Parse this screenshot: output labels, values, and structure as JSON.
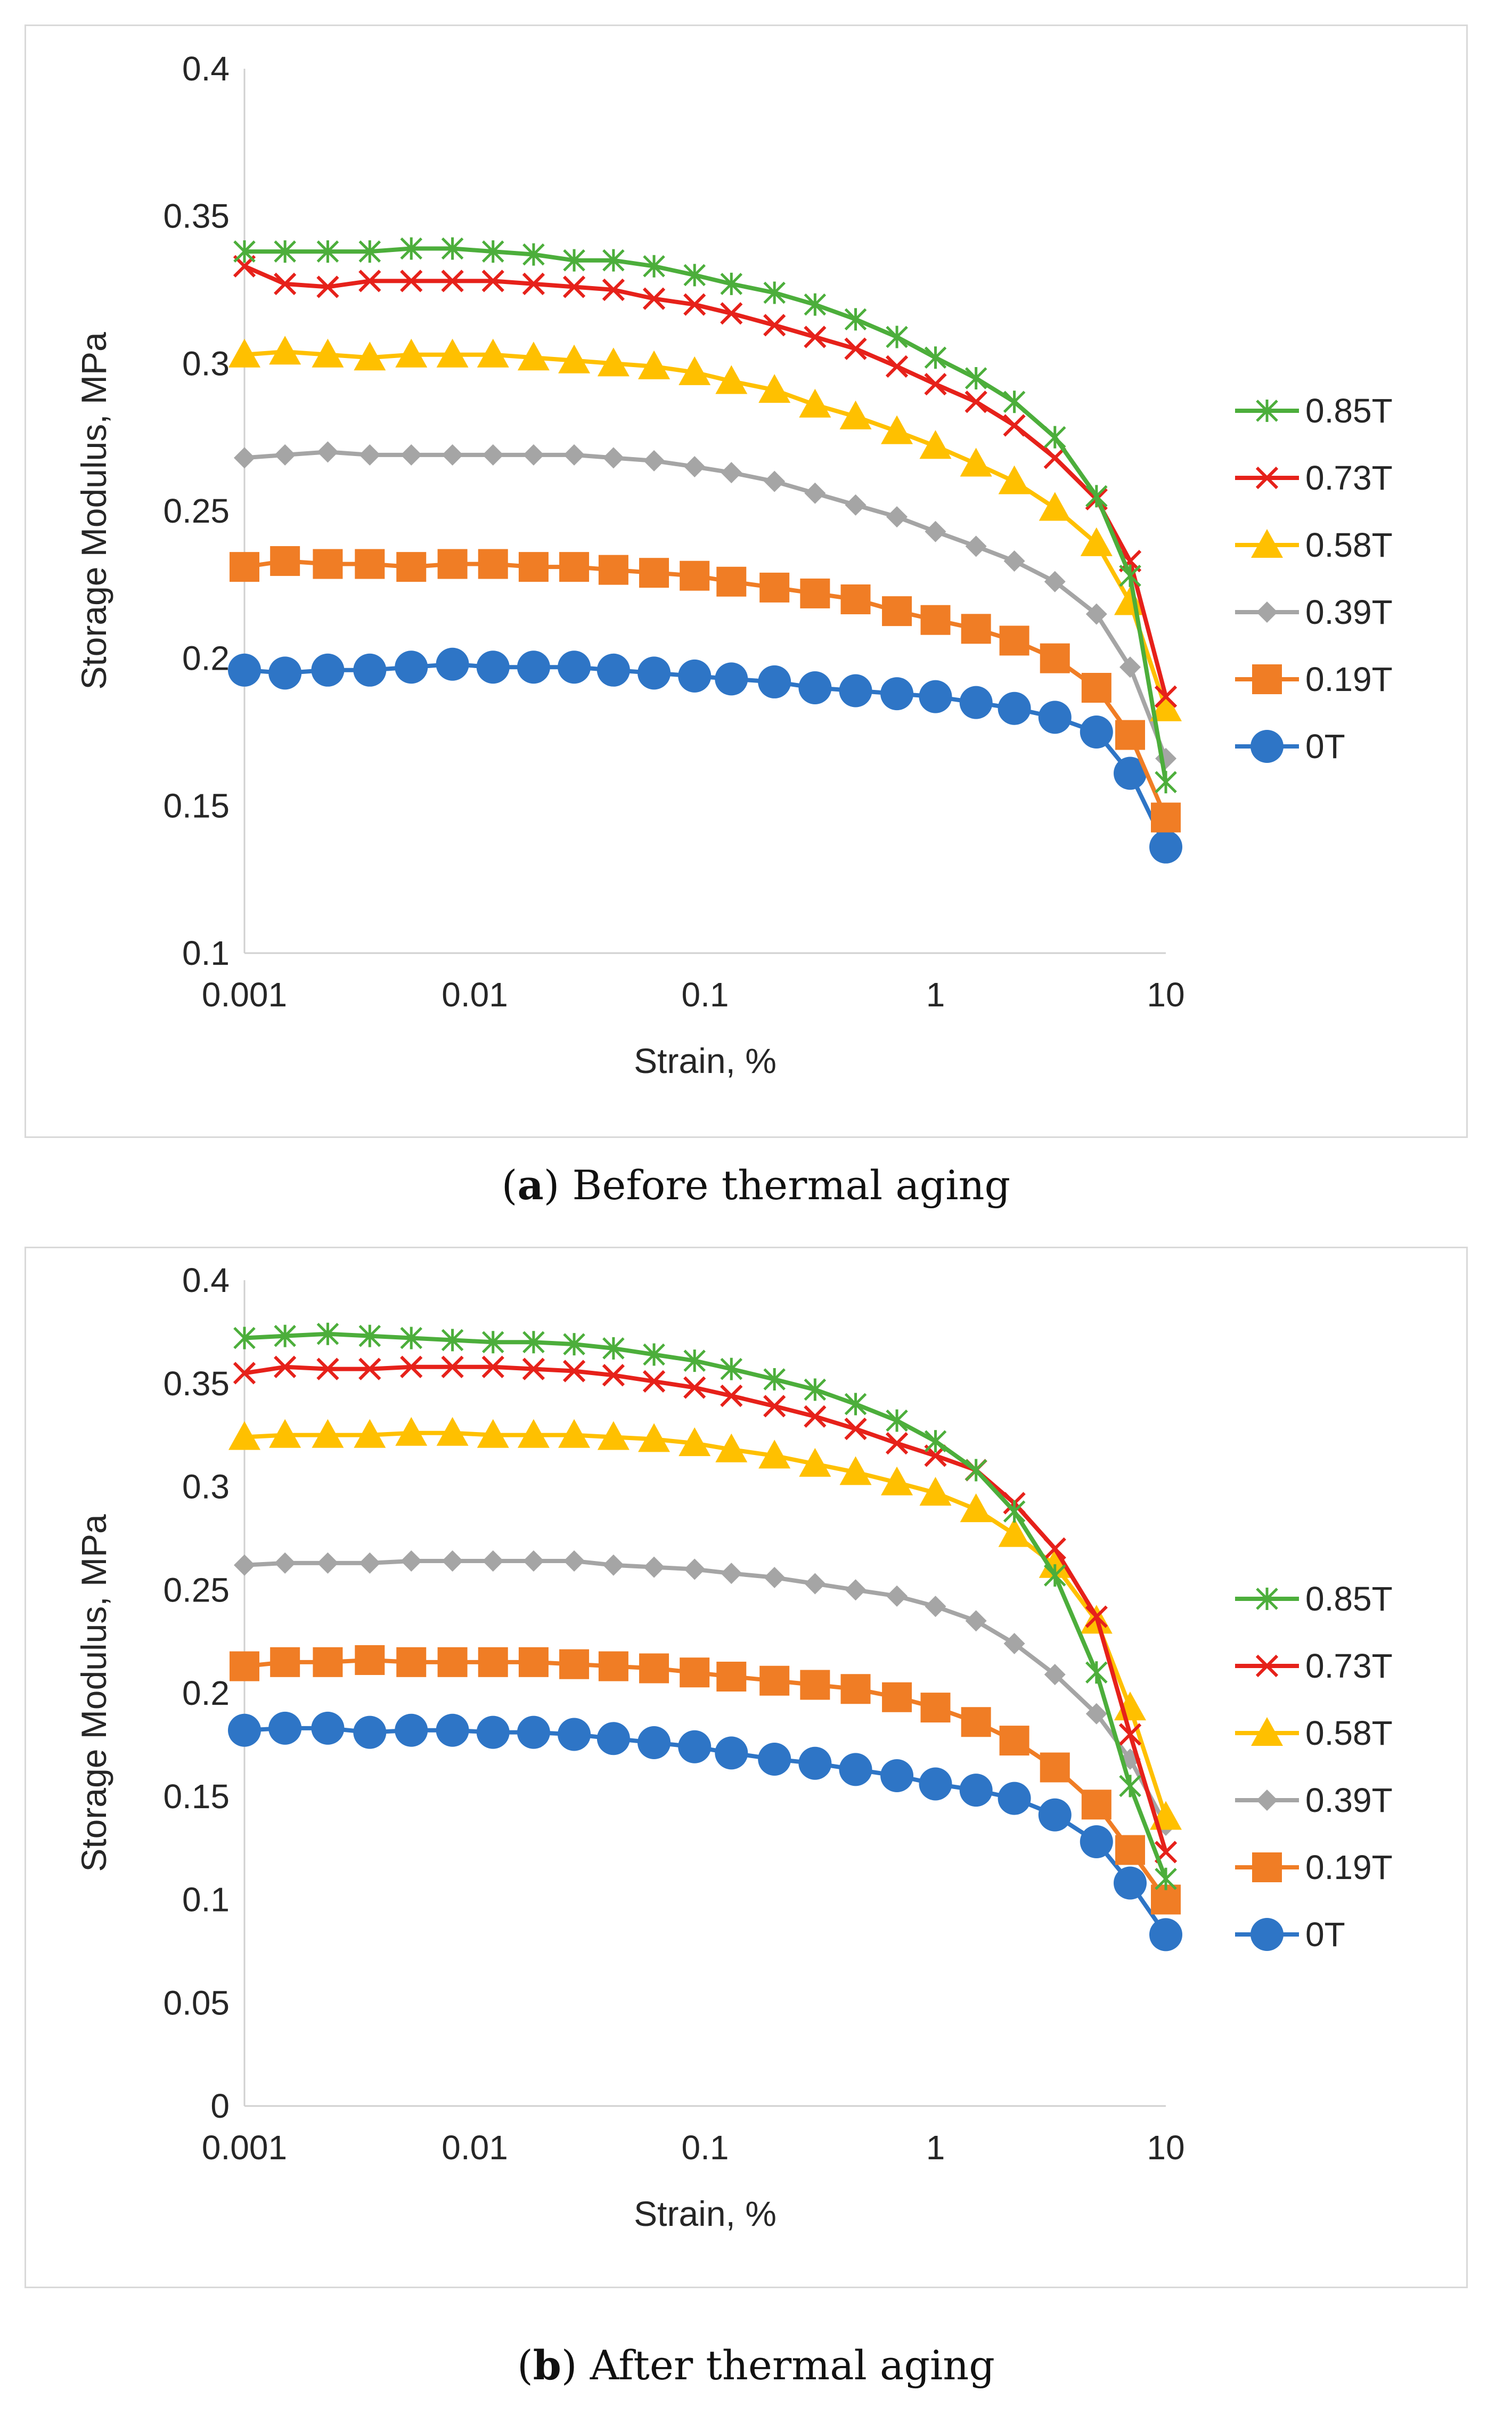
{
  "chart_data": [
    {
      "type": "line",
      "id": "a",
      "xscale": "log",
      "xlabel": "Strain, %",
      "ylabel": "Storage Modulus, MPa",
      "ylim": [
        0.1,
        0.4
      ],
      "yticks": [
        0.1,
        0.15,
        0.2,
        0.25,
        0.3,
        0.35,
        0.4
      ],
      "ytick_labels": [
        "0.1",
        "0.15",
        "0.2",
        "0.25",
        "0.3",
        "0.35",
        "0.4"
      ],
      "xlim": [
        0.001,
        10
      ],
      "xticks": [
        0.001,
        0.01,
        0.1,
        1,
        10
      ],
      "xtick_labels": [
        "0.001",
        "0.01",
        "0.1",
        "1",
        "10"
      ],
      "legend_position": "right",
      "x": [
        0.001,
        0.0015,
        0.0023,
        0.0035,
        0.0053,
        0.008,
        0.012,
        0.018,
        0.027,
        0.04,
        0.06,
        0.09,
        0.13,
        0.2,
        0.3,
        0.45,
        0.68,
        1.0,
        1.5,
        2.2,
        3.3,
        5.0,
        7.0,
        10.0
      ],
      "series": [
        {
          "name": "0.85T",
          "color": "#4cae3b",
          "marker": "asterisk",
          "values": [
            0.338,
            0.338,
            0.338,
            0.338,
            0.339,
            0.339,
            0.338,
            0.337,
            0.335,
            0.335,
            0.333,
            0.33,
            0.327,
            0.324,
            0.32,
            0.315,
            0.309,
            0.302,
            0.295,
            0.287,
            0.275,
            0.255,
            0.228,
            0.158
          ]
        },
        {
          "name": "0.73T",
          "color": "#e6211a",
          "marker": "x",
          "values": [
            0.333,
            0.327,
            0.326,
            0.328,
            0.328,
            0.328,
            0.328,
            0.327,
            0.326,
            0.325,
            0.322,
            0.32,
            0.317,
            0.313,
            0.309,
            0.305,
            0.299,
            0.293,
            0.287,
            0.279,
            0.268,
            0.254,
            0.233,
            0.187
          ]
        },
        {
          "name": "0.58T",
          "color": "#ffc000",
          "marker": "triangle",
          "values": [
            0.303,
            0.304,
            0.303,
            0.302,
            0.303,
            0.303,
            0.303,
            0.302,
            0.301,
            0.3,
            0.299,
            0.297,
            0.294,
            0.291,
            0.286,
            0.282,
            0.277,
            0.272,
            0.266,
            0.26,
            0.251,
            0.239,
            0.219,
            0.183
          ]
        },
        {
          "name": "0.39T",
          "color": "#a5a5a5",
          "marker": "diamond",
          "values": [
            0.268,
            0.269,
            0.27,
            0.269,
            0.269,
            0.269,
            0.269,
            0.269,
            0.269,
            0.268,
            0.267,
            0.265,
            0.263,
            0.26,
            0.256,
            0.252,
            0.248,
            0.243,
            0.238,
            0.233,
            0.226,
            0.215,
            0.197,
            0.166
          ]
        },
        {
          "name": "0.19T",
          "color": "#f07d25",
          "marker": "square",
          "values": [
            0.231,
            0.233,
            0.232,
            0.232,
            0.231,
            0.232,
            0.232,
            0.231,
            0.231,
            0.23,
            0.229,
            0.228,
            0.226,
            0.224,
            0.222,
            0.22,
            0.216,
            0.213,
            0.21,
            0.206,
            0.2,
            0.19,
            0.174,
            0.146
          ]
        },
        {
          "name": "0T",
          "color": "#2e75c6",
          "marker": "circle",
          "values": [
            0.196,
            0.195,
            0.196,
            0.196,
            0.197,
            0.198,
            0.197,
            0.197,
            0.197,
            0.196,
            0.195,
            0.194,
            0.193,
            0.192,
            0.19,
            0.189,
            0.188,
            0.187,
            0.185,
            0.183,
            0.18,
            0.175,
            0.161,
            0.136
          ]
        }
      ]
    },
    {
      "type": "line",
      "id": "b",
      "xscale": "log",
      "xlabel": "Strain, %",
      "ylabel": "Storage Modulus, MPa",
      "ylim": [
        0,
        0.4
      ],
      "yticks": [
        0,
        0.05,
        0.1,
        0.15,
        0.2,
        0.25,
        0.3,
        0.35,
        0.4
      ],
      "ytick_labels": [
        "0",
        "0.05",
        "0.1",
        "0.15",
        "0.2",
        "0.25",
        "0.3",
        "0.35",
        "0.4"
      ],
      "xlim": [
        0.001,
        10
      ],
      "xticks": [
        0.001,
        0.01,
        0.1,
        1,
        10
      ],
      "xtick_labels": [
        "0.001",
        "0.01",
        "0.1",
        "1",
        "10"
      ],
      "legend_position": "right",
      "x": [
        0.001,
        0.0015,
        0.0023,
        0.0035,
        0.0053,
        0.008,
        0.012,
        0.018,
        0.027,
        0.04,
        0.06,
        0.09,
        0.13,
        0.2,
        0.3,
        0.45,
        0.68,
        1.0,
        1.5,
        2.2,
        3.3,
        5.0,
        7.0,
        10.0
      ],
      "series": [
        {
          "name": "0.85T",
          "color": "#4cae3b",
          "marker": "asterisk",
          "values": [
            0.372,
            0.373,
            0.374,
            0.373,
            0.372,
            0.371,
            0.37,
            0.37,
            0.369,
            0.367,
            0.364,
            0.361,
            0.357,
            0.352,
            0.347,
            0.34,
            0.332,
            0.322,
            0.308,
            0.288,
            0.257,
            0.21,
            0.155,
            0.11
          ]
        },
        {
          "name": "0.73T",
          "color": "#e6211a",
          "marker": "x",
          "values": [
            0.355,
            0.358,
            0.357,
            0.357,
            0.358,
            0.358,
            0.358,
            0.357,
            0.356,
            0.354,
            0.351,
            0.348,
            0.344,
            0.339,
            0.334,
            0.328,
            0.321,
            0.315,
            0.308,
            0.292,
            0.27,
            0.237,
            0.18,
            0.123
          ]
        },
        {
          "name": "0.58T",
          "color": "#ffc000",
          "marker": "triangle",
          "values": [
            0.324,
            0.325,
            0.325,
            0.325,
            0.326,
            0.326,
            0.325,
            0.325,
            0.325,
            0.324,
            0.323,
            0.321,
            0.318,
            0.315,
            0.311,
            0.307,
            0.302,
            0.297,
            0.289,
            0.277,
            0.262,
            0.235,
            0.193,
            0.14
          ]
        },
        {
          "name": "0.39T",
          "color": "#a5a5a5",
          "marker": "diamond",
          "values": [
            0.262,
            0.263,
            0.263,
            0.263,
            0.264,
            0.264,
            0.264,
            0.264,
            0.264,
            0.262,
            0.261,
            0.26,
            0.258,
            0.256,
            0.253,
            0.25,
            0.247,
            0.242,
            0.235,
            0.224,
            0.209,
            0.19,
            0.168,
            0.136
          ]
        },
        {
          "name": "0.19T",
          "color": "#f07d25",
          "marker": "square",
          "values": [
            0.213,
            0.215,
            0.215,
            0.216,
            0.215,
            0.215,
            0.215,
            0.215,
            0.214,
            0.213,
            0.212,
            0.21,
            0.208,
            0.206,
            0.204,
            0.202,
            0.198,
            0.193,
            0.186,
            0.177,
            0.164,
            0.146,
            0.124,
            0.1
          ]
        },
        {
          "name": "0T",
          "color": "#2e75c6",
          "marker": "circle",
          "values": [
            0.182,
            0.183,
            0.183,
            0.181,
            0.182,
            0.182,
            0.181,
            0.181,
            0.18,
            0.178,
            0.176,
            0.174,
            0.171,
            0.168,
            0.166,
            0.163,
            0.16,
            0.156,
            0.153,
            0.149,
            0.141,
            0.128,
            0.108,
            0.083
          ]
        }
      ]
    }
  ],
  "captions": {
    "a": {
      "letter": "a",
      "text": " Before thermal aging"
    },
    "b": {
      "letter": "b",
      "text": " After thermal aging"
    }
  }
}
